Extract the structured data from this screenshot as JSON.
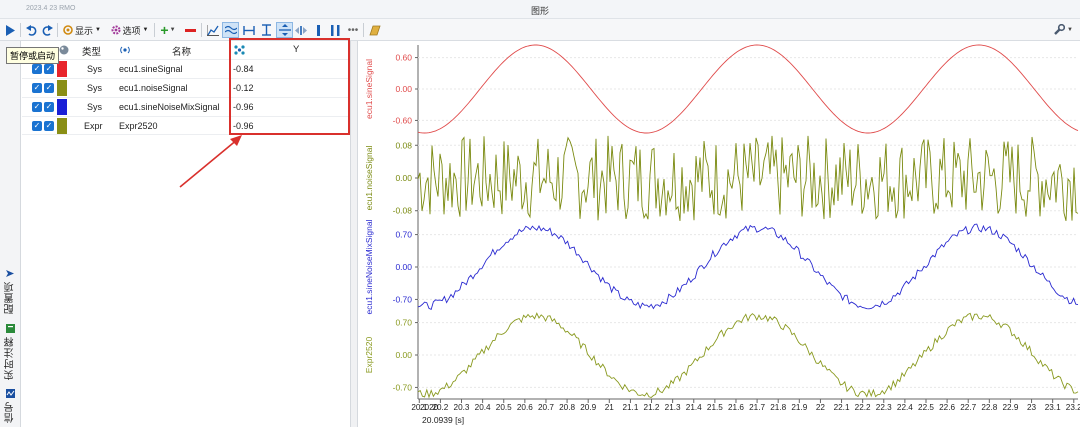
{
  "window": {
    "app_name": "2023.4 23 RMO",
    "title": "图形"
  },
  "toolbar": {
    "display_label": "显示",
    "options_label": "选项",
    "accent": "#1a73d1"
  },
  "tooltip": {
    "text": "暂停或启动"
  },
  "side_tabs": [
    {
      "label": "配置项",
      "icon": "arrow-icon"
    },
    {
      "label": "实时注释",
      "icon": "note-icon"
    },
    {
      "label": "信号",
      "icon": "signal-icon"
    }
  ],
  "table": {
    "headers": {
      "type": "类型",
      "name": "名称",
      "y": "Y"
    },
    "rows": [
      {
        "color": "#e8242b",
        "type": "Sys",
        "name": "ecu1.sineSignal",
        "y": "-0.84"
      },
      {
        "color": "#8a8f16",
        "type": "Sys",
        "name": "ecu1.noiseSignal",
        "y": "-0.12"
      },
      {
        "color": "#1a1fd6",
        "type": "Sys",
        "name": "ecu1.sineNoiseMixSignal",
        "y": "-0.96"
      },
      {
        "color": "#8a8f16",
        "type": "Expr",
        "name": "Expr2520",
        "y": "-0.96"
      }
    ]
  },
  "chart_data": [
    {
      "type": "line",
      "series": [
        {
          "name": "ecu1.sineSignal",
          "color": "#e04b4b"
        }
      ],
      "ylabel": "ecu1.sineSignal",
      "yticks": [
        "0.60",
        "0.00",
        "-0.60"
      ],
      "ylim": [
        -0.84,
        0.84
      ]
    },
    {
      "type": "line",
      "series": [
        {
          "name": "ecu1.noiseSignal",
          "color": "#7a8a10"
        }
      ],
      "ylabel": "ecu1.noiseSignal",
      "yticks": [
        "0.08",
        "0.00",
        "-0.08"
      ],
      "ylim": [
        -0.11,
        0.11
      ]
    },
    {
      "type": "line",
      "series": [
        {
          "name": "ecu1.sineNoiseMixSignal",
          "color": "#2a2ad0"
        }
      ],
      "ylabel": "ecu1.sineNoiseMixSignal",
      "yticks": [
        "0.70",
        "0.00",
        "-0.70"
      ],
      "ylim": [
        -0.95,
        0.95
      ]
    },
    {
      "type": "line",
      "series": [
        {
          "name": "Expr2520",
          "color": "#8a9a20"
        }
      ],
      "ylabel": "Expr2520",
      "yticks": [
        "0.70",
        "0.00",
        "-0.70"
      ],
      "ylim": [
        -0.95,
        0.95
      ]
    }
  ],
  "x_axis": {
    "ticks": [
      "20.1",
      "20.2",
      "20.3",
      "20.4",
      "20.5",
      "20.6",
      "20.7",
      "20.8",
      "20.9",
      "21",
      "21.1",
      "21.2",
      "21.3",
      "21.4",
      "21.5",
      "21.6",
      "21.7",
      "21.8",
      "21.9",
      "22",
      "22.1",
      "22.2",
      "22.3",
      "22.4",
      "22.5",
      "22.6",
      "22.7",
      "22.8",
      "22.9",
      "23",
      "23.1",
      "23.2"
    ],
    "first_label": "2020",
    "start": "20.0939",
    "unit": "[s]",
    "xlim": [
      20.0939,
      23.22
    ]
  }
}
